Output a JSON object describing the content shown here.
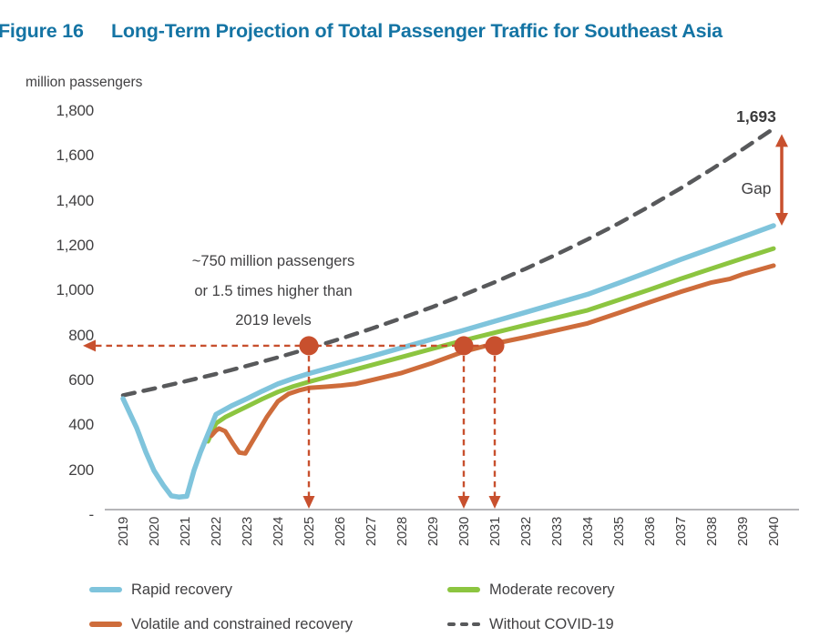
{
  "figure": {
    "label": "Figure 16",
    "title": "Long-Term Projection of Total Passenger Traffic for Southeast Asia"
  },
  "colors": {
    "title_blue": "#1474A4",
    "text_gray": "#414042",
    "axis_line": "#b5b5b8",
    "annotation_red": "#C8502E",
    "rapid_blue": "#7FC4DC",
    "moderate_green": "#8CC540",
    "volatile_orange": "#CE6C3B",
    "no_covid_gray": "#58595B"
  },
  "chart_data": {
    "type": "line",
    "title": "Long-Term Projection of Total Passenger Traffic for Southeast Asia",
    "ylabel": "million passengers",
    "ylim": [
      0,
      1800
    ],
    "grid": false,
    "x_ticks": [
      2019,
      2020,
      2021,
      2022,
      2023,
      2024,
      2025,
      2026,
      2027,
      2028,
      2029,
      2030,
      2031,
      2032,
      2033,
      2034,
      2035,
      2036,
      2037,
      2038,
      2039,
      2040
    ],
    "y_ticks": [
      {
        "label": "1,800",
        "value": 1800
      },
      {
        "label": "1,600",
        "value": 1600
      },
      {
        "label": "1,400",
        "value": 1400
      },
      {
        "label": "1,200",
        "value": 1200
      },
      {
        "label": "1,000",
        "value": 1000
      },
      {
        "label": "800",
        "value": 800
      },
      {
        "label": "600",
        "value": 600
      },
      {
        "label": "400",
        "value": 400
      },
      {
        "label": "200",
        "value": 200
      },
      {
        "label": "-",
        "value": 0
      }
    ],
    "series": [
      {
        "name": "Rapid recovery",
        "color": "#7FC4DC",
        "style": "solid",
        "width": 5.5,
        "points": [
          [
            2019,
            490
          ],
          [
            2019.44,
            360
          ],
          [
            2019.74,
            251
          ],
          [
            2020,
            170
          ],
          [
            2020.3,
            105
          ],
          [
            2020.56,
            57
          ],
          [
            2020.8,
            52
          ],
          [
            2021.06,
            55
          ],
          [
            2021.29,
            170
          ],
          [
            2021.5,
            251
          ],
          [
            2021.79,
            349
          ],
          [
            2022,
            420
          ],
          [
            2022.5,
            458
          ],
          [
            2023,
            490
          ],
          [
            2023.5,
            524
          ],
          [
            2024,
            556
          ],
          [
            2024.5,
            580
          ],
          [
            2025,
            602
          ],
          [
            2026,
            640
          ],
          [
            2027,
            678
          ],
          [
            2028,
            717
          ],
          [
            2029,
            756
          ],
          [
            2030,
            795
          ],
          [
            2031,
            835
          ],
          [
            2032,
            875
          ],
          [
            2033,
            915
          ],
          [
            2034,
            955
          ],
          [
            2035,
            1005
          ],
          [
            2036,
            1057
          ],
          [
            2037,
            1110
          ],
          [
            2038,
            1160
          ],
          [
            2039,
            1210
          ],
          [
            2040,
            1261
          ]
        ]
      },
      {
        "name": "Moderate recovery",
        "color": "#8CC540",
        "style": "solid",
        "width": 5,
        "points": [
          [
            2021.74,
            300
          ],
          [
            2022,
            380
          ],
          [
            2022.3,
            408
          ],
          [
            2022.6,
            428
          ],
          [
            2023,
            455
          ],
          [
            2023.5,
            489
          ],
          [
            2024,
            520
          ],
          [
            2024.5,
            545
          ],
          [
            2025,
            565
          ],
          [
            2026,
            602
          ],
          [
            2027,
            639
          ],
          [
            2028,
            676
          ],
          [
            2029,
            713
          ],
          [
            2030,
            750
          ],
          [
            2031,
            784
          ],
          [
            2032,
            818
          ],
          [
            2033,
            851
          ],
          [
            2034,
            884
          ],
          [
            2035,
            930
          ],
          [
            2036,
            976
          ],
          [
            2037,
            1024
          ],
          [
            2038,
            1070
          ],
          [
            2039,
            1115
          ],
          [
            2040,
            1159
          ]
        ]
      },
      {
        "name": "Volatile and constrained recovery",
        "color": "#CE6C3B",
        "style": "solid",
        "width": 5,
        "points": [
          [
            2021.85,
            325
          ],
          [
            2022,
            348
          ],
          [
            2022.1,
            357
          ],
          [
            2022.3,
            345
          ],
          [
            2022.55,
            290
          ],
          [
            2022.75,
            250
          ],
          [
            2022.95,
            246
          ],
          [
            2023.05,
            270
          ],
          [
            2023.35,
            340
          ],
          [
            2023.65,
            410
          ],
          [
            2024,
            478
          ],
          [
            2024.35,
            512
          ],
          [
            2024.7,
            528
          ],
          [
            2025,
            538
          ],
          [
            2025.5,
            543
          ],
          [
            2026,
            548
          ],
          [
            2026.5,
            556
          ],
          [
            2027,
            572
          ],
          [
            2028,
            605
          ],
          [
            2029,
            650
          ],
          [
            2030,
            700
          ],
          [
            2031,
            736
          ],
          [
            2032,
            764
          ],
          [
            2033,
            795
          ],
          [
            2034,
            826
          ],
          [
            2035,
            872
          ],
          [
            2036,
            920
          ],
          [
            2037,
            966
          ],
          [
            2038,
            1008
          ],
          [
            2038.6,
            1024
          ],
          [
            2039,
            1044
          ],
          [
            2040,
            1083
          ]
        ]
      },
      {
        "name": "Without COVID-19",
        "color": "#58595B",
        "style": "dashed",
        "width": 4.5,
        "points": [
          [
            2019,
            505
          ],
          [
            2020,
            535
          ],
          [
            2021,
            567
          ],
          [
            2022,
            600
          ],
          [
            2023,
            636
          ],
          [
            2024,
            674
          ],
          [
            2025,
            714
          ],
          [
            2026,
            756
          ],
          [
            2027,
            801
          ],
          [
            2028,
            849
          ],
          [
            2029,
            899
          ],
          [
            2030,
            953
          ],
          [
            2031,
            1009
          ],
          [
            2032,
            1069
          ],
          [
            2033,
            1133
          ],
          [
            2034,
            1200
          ],
          [
            2035,
            1271
          ],
          [
            2036,
            1347
          ],
          [
            2037,
            1427
          ],
          [
            2038,
            1512
          ],
          [
            2039,
            1601
          ],
          [
            2040,
            1693
          ]
        ]
      }
    ],
    "annotations": {
      "callout_lines": [
        "~750 million passengers",
        "or 1.5 times higher than",
        "2019 levels"
      ],
      "reference_level": 726,
      "marker_years": [
        2025,
        2030,
        2031
      ],
      "endpoint_label": "1,693",
      "endpoint_value": 1693,
      "gap_label": "Gap"
    }
  },
  "legend": {
    "items": [
      {
        "label": "Rapid recovery",
        "color": "#7FC4DC",
        "dashed": false
      },
      {
        "label": "Moderate recovery",
        "color": "#8CC540",
        "dashed": false
      },
      {
        "label": "Volatile and constrained recovery",
        "color": "#CE6C3B",
        "dashed": false
      },
      {
        "label": "Without COVID-19",
        "color": "#58595B",
        "dashed": true
      }
    ]
  }
}
